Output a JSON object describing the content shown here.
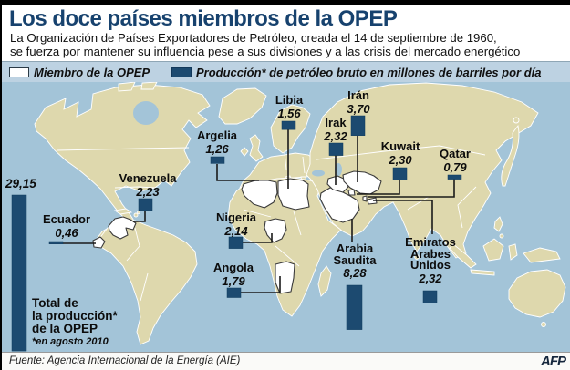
{
  "header": {
    "title": "Los doce países miembros de la OPEP",
    "subtitle_line1": "La Organización de Países Exportadores de Petróleo, creada el 14 de septiembre de 1960,",
    "subtitle_line2": "se fuerza por mantener su influencia pese a sus divisiones y a las crisis del mercado energético"
  },
  "legend": {
    "member_label": "Miembro de la OPEP",
    "production_label": "Producción* de petróleo bruto en millones de barriles por día"
  },
  "chart_data": {
    "type": "bar",
    "title": "Los doce países miembros de la OPEP",
    "unit": "millones de barriles por día",
    "note": "*en agosto 2010",
    "countries": [
      {
        "id": "venezuela",
        "name": "Venezuela",
        "name_lines": [
          "Venezuela"
        ],
        "value": 2.23,
        "value_label": "2,23"
      },
      {
        "id": "ecuador",
        "name": "Ecuador",
        "name_lines": [
          "Ecuador"
        ],
        "value": 0.46,
        "value_label": "0,46"
      },
      {
        "id": "argelia",
        "name": "Argelia",
        "name_lines": [
          "Argelia"
        ],
        "value": 1.26,
        "value_label": "1,26"
      },
      {
        "id": "libia",
        "name": "Libia",
        "name_lines": [
          "Libia"
        ],
        "value": 1.56,
        "value_label": "1,56"
      },
      {
        "id": "nigeria",
        "name": "Nigeria",
        "name_lines": [
          "Nigeria"
        ],
        "value": 2.14,
        "value_label": "2,14"
      },
      {
        "id": "angola",
        "name": "Angola",
        "name_lines": [
          "Angola"
        ],
        "value": 1.79,
        "value_label": "1,79"
      },
      {
        "id": "iran",
        "name": "Irán",
        "name_lines": [
          "Irán"
        ],
        "value": 3.7,
        "value_label": "3,70"
      },
      {
        "id": "irak",
        "name": "Irak",
        "name_lines": [
          "Irak"
        ],
        "value": 2.32,
        "value_label": "2,32"
      },
      {
        "id": "kuwait",
        "name": "Kuwait",
        "name_lines": [
          "Kuwait"
        ],
        "value": 2.3,
        "value_label": "2,30"
      },
      {
        "id": "qatar",
        "name": "Qatar",
        "name_lines": [
          "Qatar"
        ],
        "value": 0.79,
        "value_label": "0,79"
      },
      {
        "id": "arabia-saudita",
        "name": "Arabia Saudita",
        "name_lines": [
          "Arabia",
          "Saudita"
        ],
        "value": 8.28,
        "value_label": "8,28"
      },
      {
        "id": "emiratos-arabes-unidos",
        "name": "Emiratos Arabes Unidos",
        "name_lines": [
          "Emiratos",
          "Arabes",
          "Unidos"
        ],
        "value": 2.32,
        "value_label": "2,32"
      }
    ],
    "total": {
      "value": 29.15,
      "value_label": "29,15",
      "label_lines": [
        "Total de",
        "la producción*",
        "de la OPEP"
      ],
      "note": "*en agosto 2010"
    }
  },
  "footer": {
    "source": "Fuente: Agencia Internacional de la Energía (AIE)",
    "agency": "AFP"
  },
  "colors": {
    "accent_navy": "#1c4a70",
    "title_navy": "#17426e",
    "ocean": "#a3c4d8",
    "land": "#ded8ad",
    "legend_bg": "#bdd2e2"
  }
}
